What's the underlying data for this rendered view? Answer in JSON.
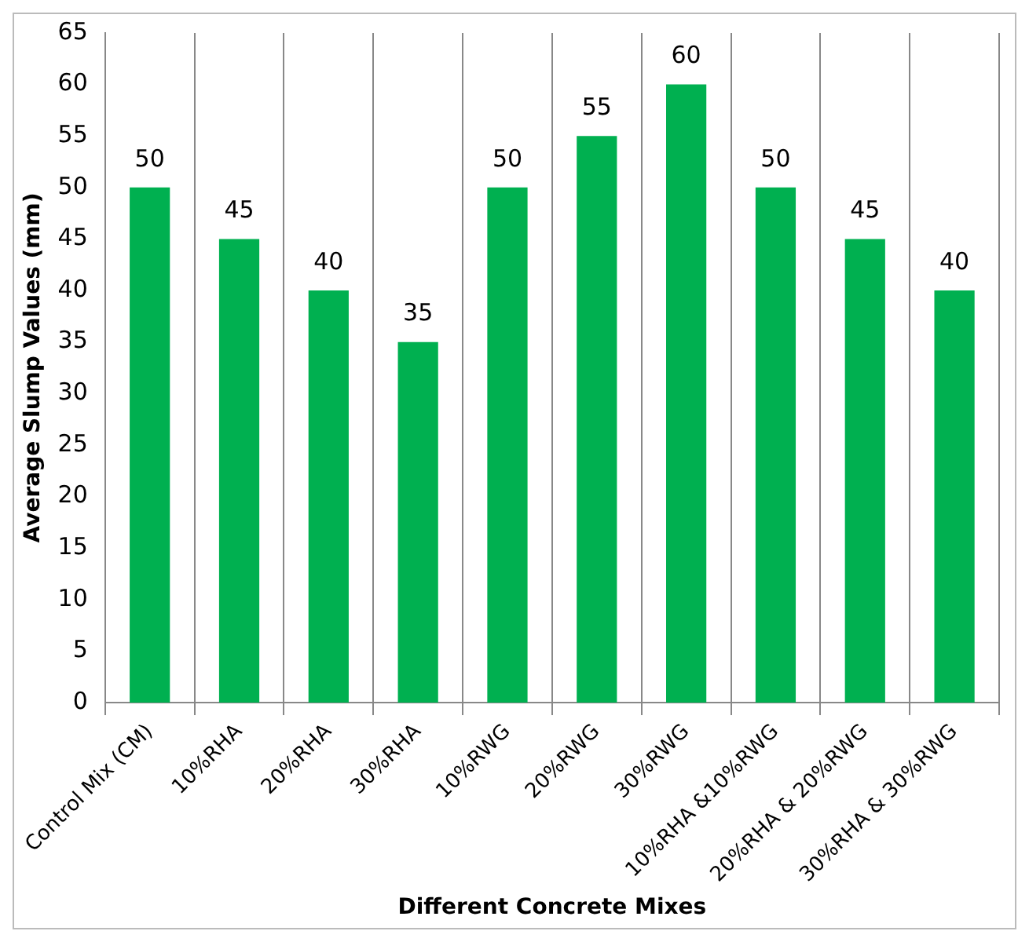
{
  "chart_data": {
    "type": "bar",
    "xlabel": "Different Concrete Mixes",
    "ylabel": "Average Slump Values (mm)",
    "categories": [
      "Control Mix (CM)",
      "10%RHA",
      "20%RHA",
      "30%RHA",
      "10%RWG",
      "20%RWG",
      "30%RWG",
      "10%RHA &10%RWG",
      "20%RHA & 20%RWG",
      "30%RHA & 30%RWG"
    ],
    "values": [
      50,
      45,
      40,
      35,
      50,
      55,
      60,
      50,
      45,
      40
    ],
    "color": "#00b050",
    "ylim": [
      0,
      65
    ],
    "yticks": [
      0,
      5,
      10,
      15,
      20,
      25,
      30,
      35,
      40,
      45,
      50,
      55,
      60,
      65
    ],
    "grid": "x",
    "data_labels": true
  }
}
